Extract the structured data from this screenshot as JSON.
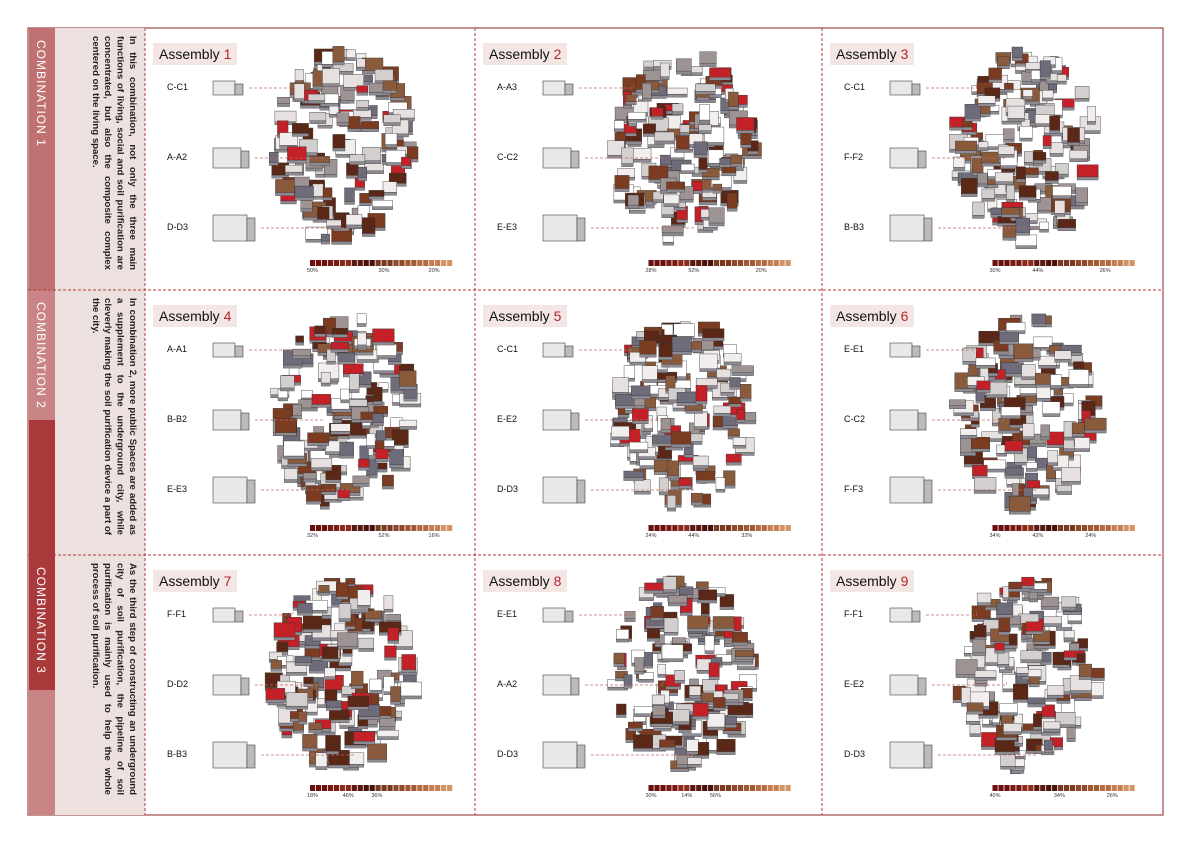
{
  "combinations": [
    {
      "label": "COMBINATION 1",
      "text": "In this combination, not only the three main functions of living, social and soil purification are concentrated, but also the composite complex centered on the living space."
    },
    {
      "label": "COMBINATION 2",
      "text": "In combination 2, more public Spaces are added as a supplement to the underground city, while cleverly making the soil purification device a part of the city."
    },
    {
      "label": "COMBINATION 3",
      "text": "As the third step of constructing an underground city of soil purification, the pipeline of soil purification is mainly used to help the whole process of soil purification."
    }
  ],
  "assemblies": [
    {
      "title": "Assembly",
      "number": "1",
      "modules": [
        "C-C1",
        "A-A2",
        "D-D3"
      ],
      "scale_labels": [
        "50%",
        "30%",
        "20%"
      ]
    },
    {
      "title": "Assembly",
      "number": "2",
      "modules": [
        "A-A3",
        "C-C2",
        "E-E3"
      ],
      "scale_labels": [
        "28%",
        "52%",
        "20%"
      ]
    },
    {
      "title": "Assembly",
      "number": "3",
      "modules": [
        "C-C1",
        "F-F2",
        "B-B3"
      ],
      "scale_labels": [
        "30%",
        "44%",
        "26%"
      ]
    },
    {
      "title": "Assembly",
      "number": "4",
      "modules": [
        "A-A1",
        "B-B2",
        "E-E3"
      ],
      "scale_labels": [
        "32%",
        "52%",
        "16%"
      ]
    },
    {
      "title": "Assembly",
      "number": "5",
      "modules": [
        "C-C1",
        "E-E2",
        "D-D3"
      ],
      "scale_labels": [
        "24%",
        "44%",
        "32%"
      ]
    },
    {
      "title": "Assembly",
      "number": "6",
      "modules": [
        "E-E1",
        "C-C2",
        "F-F3"
      ],
      "scale_labels": [
        "34%",
        "42%",
        "24%"
      ]
    },
    {
      "title": "Assembly",
      "number": "7",
      "modules": [
        "F-F1",
        "D-D2",
        "B-B3"
      ],
      "scale_labels": [
        "18%",
        "46%",
        "36%"
      ]
    },
    {
      "title": "Assembly",
      "number": "8",
      "modules": [
        "E-E1",
        "A-A2",
        "D-D3"
      ],
      "scale_labels": [
        "30%",
        "14%",
        "56%"
      ]
    },
    {
      "title": "Assembly",
      "number": "9",
      "modules": [
        "F-F1",
        "E-E2",
        "D-D3"
      ],
      "scale_labels": [
        "40%",
        "34%",
        "26%"
      ]
    }
  ]
}
